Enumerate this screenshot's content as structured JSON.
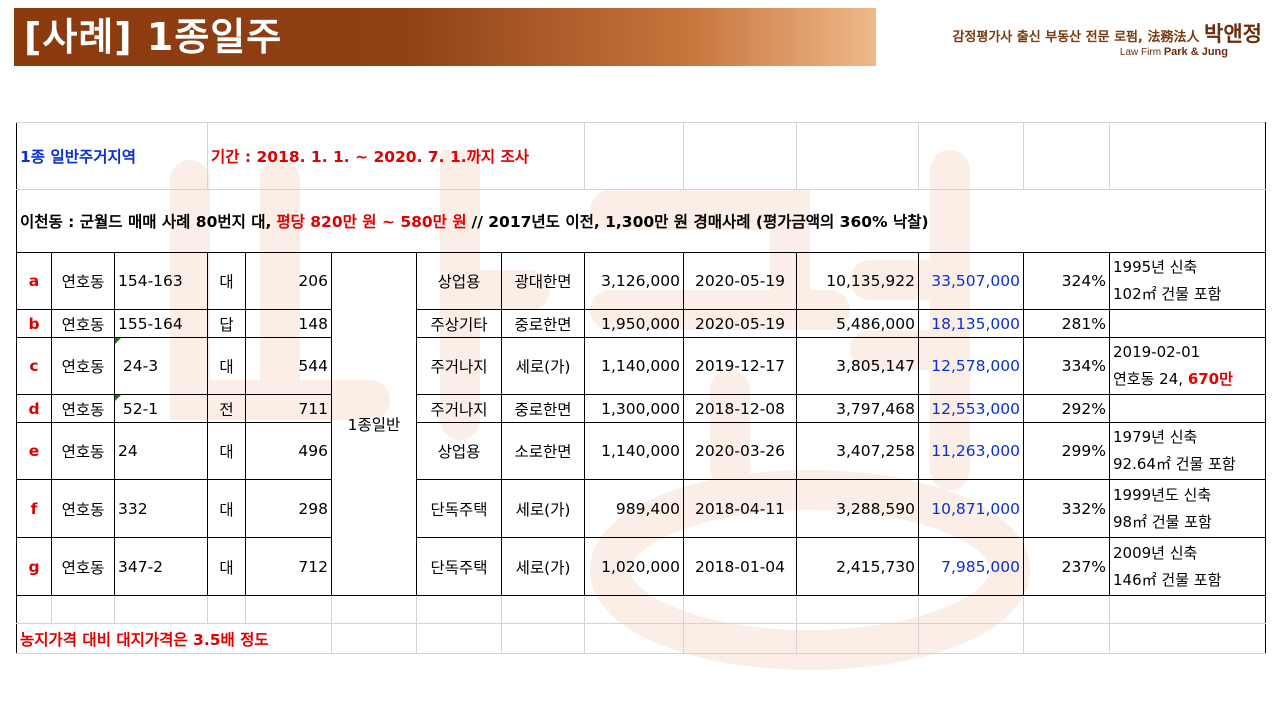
{
  "title": "[사례] 1종일주",
  "brand": {
    "tagline": "감정평가사 출신 부동산 전문 로펌,",
    "hanja": "法務法人",
    "name": "박앤정",
    "english_prefix": "Law Firm",
    "english_name": "Park & Jung"
  },
  "header": {
    "zone": "1종 일반주거지역",
    "period": "기간 : 2018. 1. 1. ~ 2020. 7. 1.까지 조사"
  },
  "summary": {
    "part1": "이천동 : 군월드 매매 사례 80번지 대,",
    "part2": "평당 820만 원 ~ 580만 원",
    "part3": "// 2017년도 이전, 1,300만 원 경매사례 (평가금액의 360% 낙찰)"
  },
  "zone_merged": "1종일반",
  "rows": [
    {
      "id": "a",
      "dong": "연호동",
      "lot": "154-163",
      "jimok": "대",
      "area": "206",
      "use": "상업용",
      "road": "광대한면",
      "price": "3,126,000",
      "date": "2020-05-19",
      "total": "10,135,922",
      "pyeong": "33,507,000",
      "ratio": "324%",
      "note1": "1995년 신축",
      "note2": "102㎡ 건물 포함",
      "note2_red": ""
    },
    {
      "id": "b",
      "dong": "연호동",
      "lot": "155-164",
      "jimok": "답",
      "area": "148",
      "use": "주상기타",
      "road": "중로한면",
      "price": "1,950,000",
      "date": "2020-05-19",
      "total": "5,486,000",
      "pyeong": "18,135,000",
      "ratio": "281%",
      "note1": "",
      "note2": "",
      "note2_red": ""
    },
    {
      "id": "c",
      "dong": "연호동",
      "lot": " 24-3",
      "jimok": "대",
      "area": "544",
      "use": "주거나지",
      "road": "세로(가)",
      "price": "1,140,000",
      "date": "2019-12-17",
      "total": "3,805,147",
      "pyeong": "12,578,000",
      "ratio": "334%",
      "note1": "2019-02-01",
      "note2": "연호동 24,",
      "note2_red": "670만"
    },
    {
      "id": "d",
      "dong": "연호동",
      "lot": " 52-1",
      "jimok": "전",
      "area": "711",
      "use": "주거나지",
      "road": "중로한면",
      "price": "1,300,000",
      "date": "2018-12-08",
      "total": "3,797,468",
      "pyeong": "12,553,000",
      "ratio": "292%",
      "note1": "",
      "note2": "",
      "note2_red": ""
    },
    {
      "id": "e",
      "dong": "연호동",
      "lot": "24",
      "jimok": "대",
      "area": "496",
      "use": "상업용",
      "road": "소로한면",
      "price": "1,140,000",
      "date": "2020-03-26",
      "total": "3,407,258",
      "pyeong": "11,263,000",
      "ratio": "299%",
      "note1": "1979년 신축",
      "note2": "92.64㎡ 건물 포함",
      "note2_red": ""
    },
    {
      "id": "f",
      "dong": "연호동",
      "lot": "332",
      "jimok": "대",
      "area": "298",
      "use": "단독주택",
      "road": "세로(가)",
      "price": "989,400",
      "date": "2018-04-11",
      "total": "3,288,590",
      "pyeong": "10,871,000",
      "ratio": "332%",
      "note1": "1999년도 신축",
      "note2": "98㎡ 건물 포함",
      "note2_red": ""
    },
    {
      "id": "g",
      "dong": "연호동",
      "lot": "347-2",
      "jimok": "대",
      "area": "712",
      "use": "단독주택",
      "road": "세로(가)",
      "price": "1,020,000",
      "date": "2018-01-04",
      "total": "2,415,730",
      "pyeong": "7,985,000",
      "ratio": "237%",
      "note1": "2009년 신축",
      "note2": "146㎡ 건물 포함",
      "note2_red": ""
    }
  ],
  "footer_note": "농지가격 대비 대지가격은 3.5배 정도"
}
